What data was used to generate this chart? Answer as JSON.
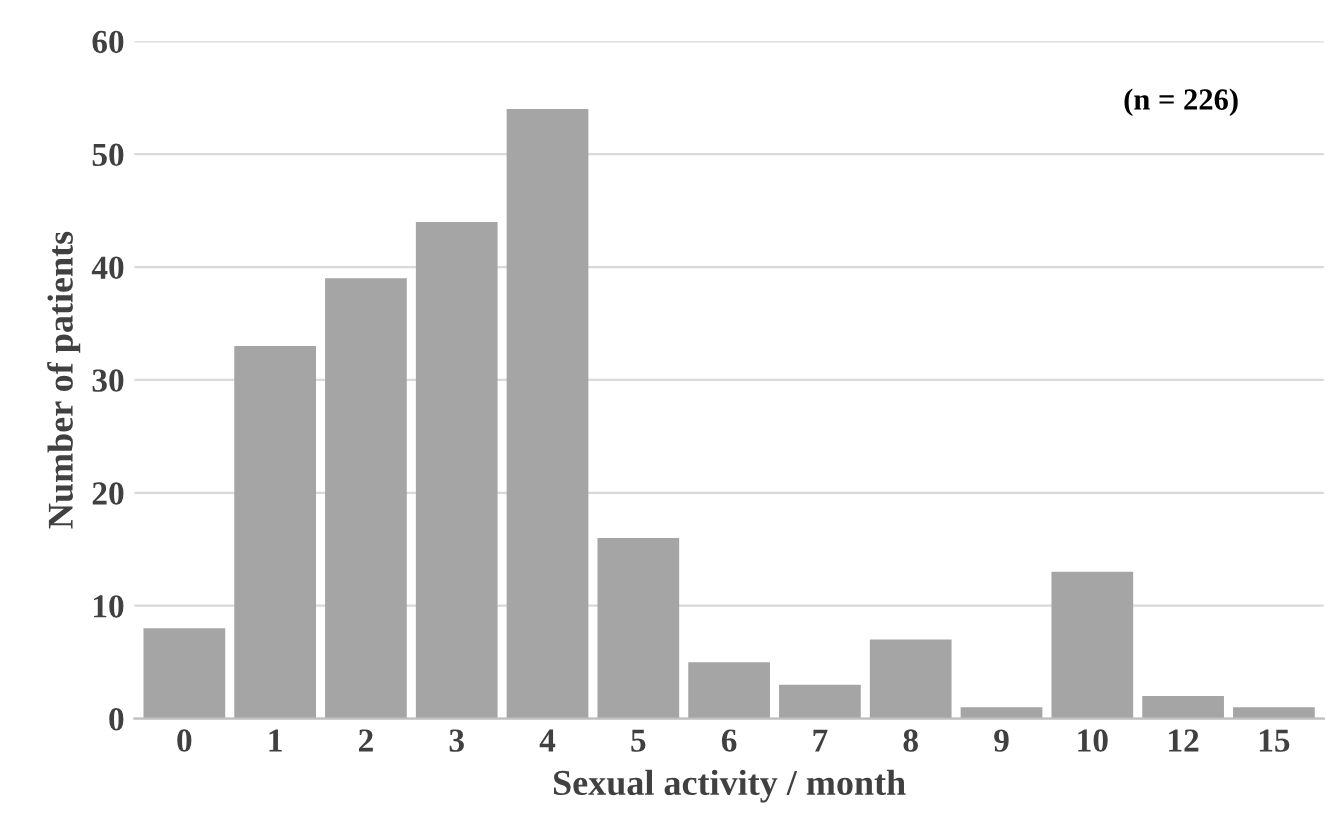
{
  "chart_data": {
    "type": "bar",
    "xlabel": "Sexual activity / month",
    "ylabel": "Number of patients",
    "categories": [
      "0",
      "1",
      "2",
      "3",
      "4",
      "5",
      "6",
      "7",
      "8",
      "9",
      "10",
      "12",
      "15"
    ],
    "values": [
      8,
      33,
      39,
      44,
      54,
      16,
      5,
      3,
      7,
      1,
      13,
      2,
      1
    ],
    "color": "#a5a5a5",
    "ylim": [
      0,
      60
    ],
    "yticks": [
      0,
      10,
      20,
      30,
      40,
      50,
      60
    ],
    "grid": "y",
    "annotations": [
      "(n = 226)"
    ]
  }
}
